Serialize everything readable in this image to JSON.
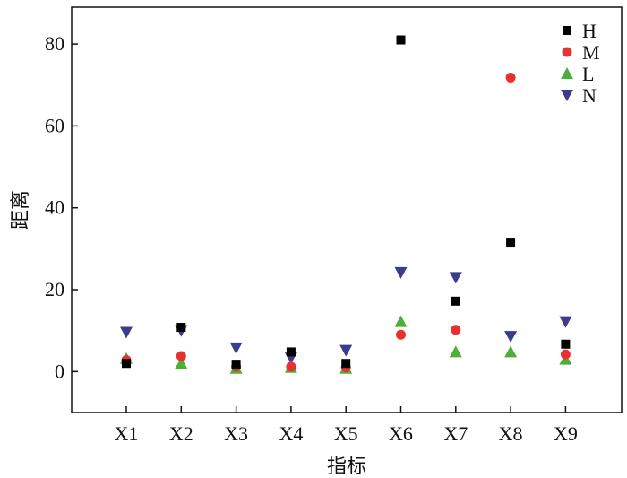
{
  "chart_data": {
    "type": "scatter",
    "categories": [
      "X1",
      "X2",
      "X3",
      "X4",
      "X5",
      "X6",
      "X7",
      "X8",
      "X9"
    ],
    "xlabel": "指标",
    "ylabel": "距离",
    "ylim": [
      -10,
      89
    ],
    "yticks": [
      0,
      20,
      40,
      60,
      80
    ],
    "grid": false,
    "legend_position": "top-right",
    "series": [
      {
        "name": "H",
        "marker": "square",
        "color": "#000000",
        "values": [
          2.0,
          10.8,
          1.8,
          4.8,
          2.0,
          81.0,
          17.2,
          31.6,
          6.7
        ]
      },
      {
        "name": "M",
        "marker": "circle",
        "color": "#e8312f",
        "values": [
          2.8,
          3.8,
          1.2,
          1.2,
          1.0,
          9.0,
          10.2,
          71.8,
          4.2
        ]
      },
      {
        "name": "L",
        "marker": "triangle-up",
        "color": "#4caf3a",
        "values": [
          3.2,
          2.0,
          0.8,
          1.0,
          0.8,
          12.2,
          4.8,
          4.8,
          3.0
        ]
      },
      {
        "name": "N",
        "marker": "triangle-down",
        "color": "#3c3c8c",
        "values": [
          9.6,
          10.0,
          5.8,
          3.4,
          5.2,
          24.2,
          23.0,
          8.6,
          12.2
        ]
      }
    ]
  }
}
